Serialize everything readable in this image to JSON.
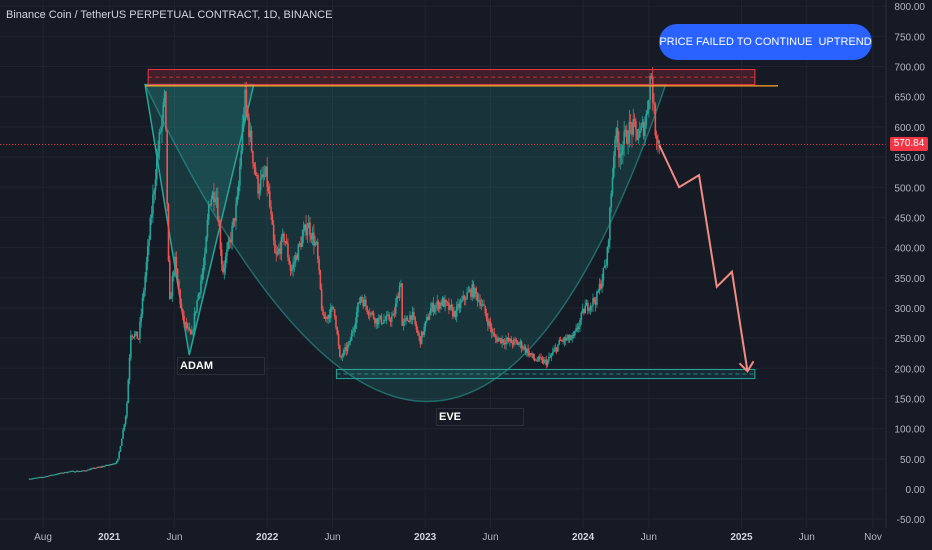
{
  "header": {
    "title": "Binance Coin / TetherUS PERPETUAL CONTRACT, 1D, BINANCE"
  },
  "callout": {
    "text": "PRICE FAILED TO CONTINUE  UPTREND"
  },
  "current_price": {
    "label": "570.84",
    "value": 570.84
  },
  "annotations": {
    "adam": "ADAM",
    "eve": "EVE"
  },
  "colors": {
    "background": "#161a25",
    "up": "#26a69a",
    "down": "#ef5350",
    "resistance": "#f23645",
    "support": "#26a69a",
    "projection": "#f28b82",
    "callout": "#2962ff"
  },
  "chart_data": {
    "type": "line",
    "title": "Binance Coin / TetherUS PERPETUAL CONTRACT, 1D, BINANCE",
    "xlabel": "",
    "ylabel": "",
    "ylim": [
      -50,
      800
    ],
    "y_ticks": [
      "-50.00",
      "0.00",
      "50.00",
      "100.00",
      "150.00",
      "200.00",
      "250.00",
      "300.00",
      "350.00",
      "400.00",
      "450.00",
      "500.00",
      "550.00",
      "600.00",
      "650.00",
      "700.00",
      "750.00",
      "800.00"
    ],
    "x_ticks": [
      "Aug",
      "2021",
      "Jun",
      "2022",
      "Jun",
      "2023",
      "Jun",
      "2024",
      "Jun",
      "2025",
      "Jun",
      "Nov"
    ],
    "x_tick_dates": [
      "2020-08-01",
      "2021-01-01",
      "2021-06-01",
      "2022-01-01",
      "2022-06-01",
      "2023-01-01",
      "2023-06-01",
      "2024-01-01",
      "2024-06-01",
      "2025-01-01",
      "2025-06-01",
      "2025-11-01"
    ],
    "series": [
      {
        "type": "candlestick-approx",
        "points": [
          [
            "2020-07-01",
            17
          ],
          [
            "2020-08-01",
            20
          ],
          [
            "2020-09-01",
            25
          ],
          [
            "2020-10-01",
            29
          ],
          [
            "2020-11-01",
            30
          ],
          [
            "2020-12-01",
            35
          ],
          [
            "2021-01-01",
            40
          ],
          [
            "2021-01-20",
            45
          ],
          [
            "2021-02-10",
            130
          ],
          [
            "2021-02-20",
            260
          ],
          [
            "2021-03-10",
            250
          ],
          [
            "2021-04-01",
            400
          ],
          [
            "2021-04-20",
            540
          ],
          [
            "2021-05-10",
            650
          ],
          [
            "2021-05-20",
            300
          ],
          [
            "2021-06-01",
            380
          ],
          [
            "2021-06-20",
            280
          ],
          [
            "2021-07-10",
            250
          ],
          [
            "2021-07-20",
            300
          ],
          [
            "2021-08-10",
            380
          ],
          [
            "2021-08-20",
            480
          ],
          [
            "2021-09-05",
            495
          ],
          [
            "2021-09-20",
            360
          ],
          [
            "2021-10-10",
            420
          ],
          [
            "2021-10-25",
            480
          ],
          [
            "2021-11-10",
            650
          ],
          [
            "2021-11-25",
            570
          ],
          [
            "2021-12-10",
            500
          ],
          [
            "2021-12-30",
            520
          ],
          [
            "2022-01-20",
            380
          ],
          [
            "2022-02-10",
            420
          ],
          [
            "2022-02-25",
            360
          ],
          [
            "2022-03-20",
            410
          ],
          [
            "2022-04-05",
            440
          ],
          [
            "2022-04-25",
            400
          ],
          [
            "2022-05-10",
            280
          ],
          [
            "2022-06-05",
            300
          ],
          [
            "2022-06-18",
            215
          ],
          [
            "2022-07-10",
            240
          ],
          [
            "2022-08-05",
            320
          ],
          [
            "2022-08-20",
            300
          ],
          [
            "2022-09-10",
            280
          ],
          [
            "2022-10-01",
            280
          ],
          [
            "2022-10-20",
            285
          ],
          [
            "2022-11-08",
            355
          ],
          [
            "2022-11-09",
            270
          ],
          [
            "2022-12-01",
            290
          ],
          [
            "2022-12-20",
            245
          ],
          [
            "2023-01-15",
            300
          ],
          [
            "2023-02-10",
            310
          ],
          [
            "2023-03-10",
            290
          ],
          [
            "2023-04-05",
            320
          ],
          [
            "2023-04-20",
            330
          ],
          [
            "2023-05-10",
            310
          ],
          [
            "2023-06-10",
            250
          ],
          [
            "2023-07-10",
            245
          ],
          [
            "2023-08-10",
            240
          ],
          [
            "2023-09-10",
            215
          ],
          [
            "2023-10-10",
            210
          ],
          [
            "2023-11-10",
            245
          ],
          [
            "2023-12-10",
            250
          ],
          [
            "2024-01-05",
            300
          ],
          [
            "2024-02-01",
            315
          ],
          [
            "2024-02-25",
            380
          ],
          [
            "2024-03-15",
            590
          ],
          [
            "2024-03-25",
            560
          ],
          [
            "2024-04-20",
            600
          ],
          [
            "2024-05-10",
            585
          ],
          [
            "2024-05-25",
            610
          ],
          [
            "2024-06-06",
            695
          ],
          [
            "2024-06-15",
            600
          ],
          [
            "2024-06-25",
            575
          ]
        ]
      },
      {
        "name": "",
        "type": "projection",
        "points": [
          [
            "2024-06-25",
            570
          ],
          [
            "2024-08-10",
            500
          ],
          [
            "2024-09-25",
            520
          ],
          [
            "2024-11-05",
            335
          ],
          [
            "2024-12-10",
            360
          ],
          [
            "2025-01-15",
            195
          ]
        ]
      }
    ],
    "zones": [
      {
        "type": "resistance",
        "y_range": [
          670,
          695
        ],
        "x_range": [
          "2021-04-01",
          "2025-02-01"
        ]
      },
      {
        "type": "support",
        "y_range": [
          183,
          198
        ],
        "x_range": [
          "2022-06-10",
          "2025-02-01"
        ]
      }
    ],
    "adam_points": [
      [
        "2021-03-25",
        670
      ],
      [
        "2021-07-05",
        222
      ],
      [
        "2021-12-01",
        670
      ]
    ],
    "eve_arc_points": [
      [
        "2021-03-25",
        670
      ],
      [
        "2023-02-25",
        145
      ],
      [
        "2024-07-10",
        670
      ]
    ]
  }
}
